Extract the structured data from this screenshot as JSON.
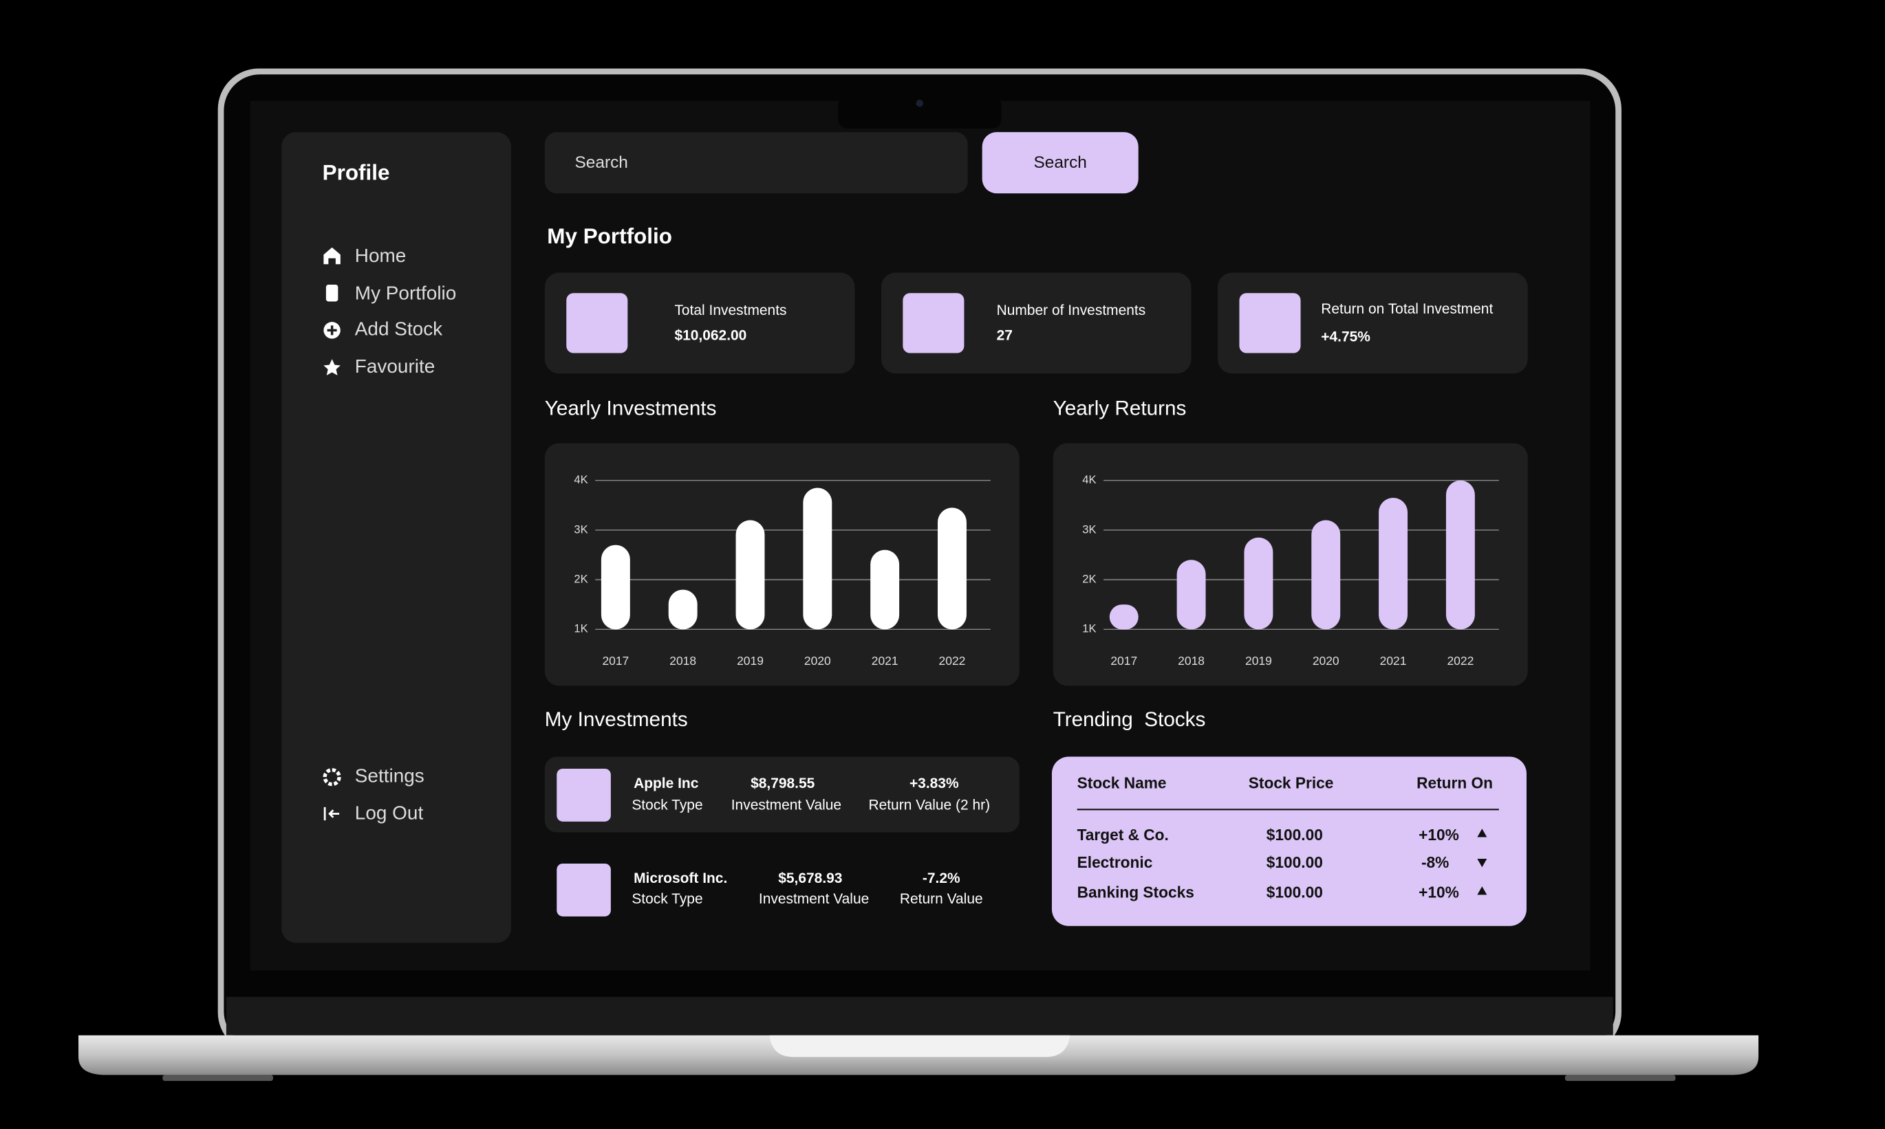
{
  "sidebar": {
    "title": "Profile",
    "nav": [
      "Home",
      "My Portfolio",
      "Add Stock",
      "Favourite"
    ],
    "footer_nav": [
      "Settings",
      "Log Out"
    ]
  },
  "search": {
    "placeholder": "Search",
    "button": "Search"
  },
  "portfolio": {
    "title": "My Portfolio",
    "cards": [
      {
        "label": "Total Investments",
        "value": "$10,062.00"
      },
      {
        "label": "Number of Investments",
        "value": "27"
      },
      {
        "label": "Return on Total Investment",
        "value": "+4.75%"
      }
    ]
  },
  "chart_data": [
    {
      "type": "bar",
      "title": "Yearly Investments",
      "categories": [
        "2017",
        "2018",
        "2019",
        "2020",
        "2021",
        "2022"
      ],
      "values": [
        2700,
        1800,
        3200,
        3850,
        2600,
        3450
      ],
      "color": "#ffffff",
      "ylim": [
        1000,
        4000
      ],
      "yticks": [
        {
          "value": 1000,
          "label": "1K"
        },
        {
          "value": 2000,
          "label": "2K"
        },
        {
          "value": 3000,
          "label": "3K"
        },
        {
          "value": 4000,
          "label": "4K"
        }
      ],
      "grid": true
    },
    {
      "type": "bar",
      "title": "Yearly Returns",
      "categories": [
        "2017",
        "2018",
        "2019",
        "2020",
        "2021",
        "2022"
      ],
      "values": [
        1500,
        2400,
        2850,
        3200,
        3650,
        4000
      ],
      "color": "#dcc6f7",
      "ylim": [
        1000,
        4000
      ],
      "yticks": [
        {
          "value": 1000,
          "label": "1K"
        },
        {
          "value": 2000,
          "label": "2K"
        },
        {
          "value": 3000,
          "label": "3K"
        },
        {
          "value": 4000,
          "label": "4K"
        }
      ],
      "grid": true
    }
  ],
  "investments": {
    "title": "My Investments",
    "items": [
      {
        "name": "Apple Inc",
        "type": "Stock Type",
        "value": "$8,798.55",
        "value_caption": "Investment Value",
        "return": "+3.83%",
        "return_caption": "Return Value (2 hr)"
      },
      {
        "name": "Microsoft Inc.",
        "type": "Stock Type",
        "value": "$5,678.93",
        "value_caption": "Investment Value",
        "return": "-7.2%",
        "return_caption": "Return Value"
      }
    ]
  },
  "trending": {
    "title": "Trending  Stocks",
    "columns": [
      "Stock Name",
      "Stock Price",
      "Return On"
    ],
    "rows": [
      [
        "Target & Co.",
        "$100.00",
        "+10%"
      ],
      [
        "Electronic",
        "$100.00",
        "-8%"
      ],
      [
        "Banking Stocks",
        "$100.00",
        "+10%"
      ]
    ]
  }
}
